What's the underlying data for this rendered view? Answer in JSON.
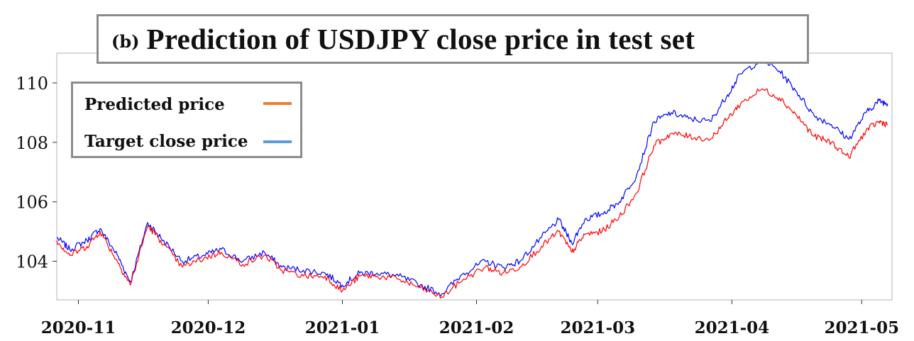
{
  "title": {
    "prefix": "(b)",
    "main": "Prediction of USDJPY close price in test set"
  },
  "legend": [
    {
      "label": "Predicted price",
      "color": "#ed7d31"
    },
    {
      "label": "Target close price",
      "color": "#5b9bd5"
    }
  ],
  "chart_data": {
    "type": "line",
    "title": "(b) Prediction of USDJPY close price in test set",
    "xlabel": "",
    "ylabel": "",
    "xlim": [
      "2020-10-27",
      "2021-05-08"
    ],
    "ylim": [
      102.7,
      111.0
    ],
    "x_ticks": [
      "2020-11",
      "2020-12",
      "2021-01",
      "2021-02",
      "2021-03",
      "2021-04",
      "2021-05"
    ],
    "y_ticks": [
      104,
      106,
      108,
      110
    ],
    "grid": false,
    "legend_position": "top-left",
    "line_colors": {
      "Predicted price": "#ff0000",
      "Target close price": "#0000ff"
    },
    "series": [
      {
        "name": "Target close price",
        "x": [
          "2020-10-27",
          "2020-10-30",
          "2020-11-03",
          "2020-11-06",
          "2020-11-10",
          "2020-11-13",
          "2020-11-17",
          "2020-11-20",
          "2020-11-25",
          "2020-11-30",
          "2020-12-04",
          "2020-12-09",
          "2020-12-14",
          "2020-12-18",
          "2020-12-23",
          "2020-12-28",
          "2021-01-01",
          "2021-01-05",
          "2021-01-09",
          "2021-01-14",
          "2021-01-19",
          "2021-01-24",
          "2021-01-29",
          "2021-02-03",
          "2021-02-07",
          "2021-02-11",
          "2021-02-16",
          "2021-02-20",
          "2021-02-23",
          "2021-02-26",
          "2021-03-02",
          "2021-03-06",
          "2021-03-10",
          "2021-03-14",
          "2021-03-18",
          "2021-03-22",
          "2021-03-27",
          "2021-03-31",
          "2021-04-03",
          "2021-04-08",
          "2021-04-12",
          "2021-04-16",
          "2021-04-20",
          "2021-04-24",
          "2021-04-28",
          "2021-05-02",
          "2021-05-05",
          "2021-05-07"
        ],
        "y": [
          104.8,
          104.4,
          104.7,
          105.1,
          104.2,
          103.3,
          105.3,
          104.8,
          104.0,
          104.2,
          104.4,
          104.0,
          104.3,
          103.8,
          103.7,
          103.6,
          103.2,
          103.6,
          103.6,
          103.5,
          103.2,
          102.9,
          103.6,
          104.0,
          103.8,
          104.0,
          104.8,
          105.4,
          104.6,
          105.4,
          105.6,
          106.0,
          106.9,
          108.7,
          109.0,
          108.8,
          108.7,
          109.6,
          110.3,
          110.8,
          110.4,
          109.7,
          108.9,
          108.6,
          108.1,
          109.0,
          109.4,
          109.3
        ]
      },
      {
        "name": "Predicted price",
        "x": [
          "2020-10-27",
          "2020-10-30",
          "2020-11-03",
          "2020-11-06",
          "2020-11-10",
          "2020-11-13",
          "2020-11-17",
          "2020-11-20",
          "2020-11-25",
          "2020-11-30",
          "2020-12-04",
          "2020-12-09",
          "2020-12-14",
          "2020-12-18",
          "2020-12-23",
          "2020-12-28",
          "2021-01-01",
          "2021-01-05",
          "2021-01-09",
          "2021-01-14",
          "2021-01-19",
          "2021-01-24",
          "2021-01-29",
          "2021-02-03",
          "2021-02-07",
          "2021-02-11",
          "2021-02-16",
          "2021-02-20",
          "2021-02-23",
          "2021-02-26",
          "2021-03-02",
          "2021-03-06",
          "2021-03-10",
          "2021-03-14",
          "2021-03-18",
          "2021-03-22",
          "2021-03-27",
          "2021-03-31",
          "2021-04-03",
          "2021-04-08",
          "2021-04-12",
          "2021-04-16",
          "2021-04-20",
          "2021-04-24",
          "2021-04-28",
          "2021-05-02",
          "2021-05-05",
          "2021-05-07"
        ],
        "y": [
          104.7,
          104.2,
          104.5,
          105.0,
          104.0,
          103.2,
          105.2,
          104.7,
          103.8,
          104.1,
          104.3,
          103.9,
          104.2,
          103.7,
          103.5,
          103.5,
          103.0,
          103.5,
          103.5,
          103.4,
          103.1,
          102.8,
          103.4,
          103.8,
          103.6,
          103.8,
          104.5,
          105.0,
          104.3,
          104.9,
          105.0,
          105.5,
          106.3,
          107.9,
          108.3,
          108.2,
          108.1,
          108.8,
          109.3,
          109.8,
          109.5,
          108.9,
          108.2,
          108.0,
          107.5,
          108.4,
          108.7,
          108.6
        ]
      }
    ]
  }
}
